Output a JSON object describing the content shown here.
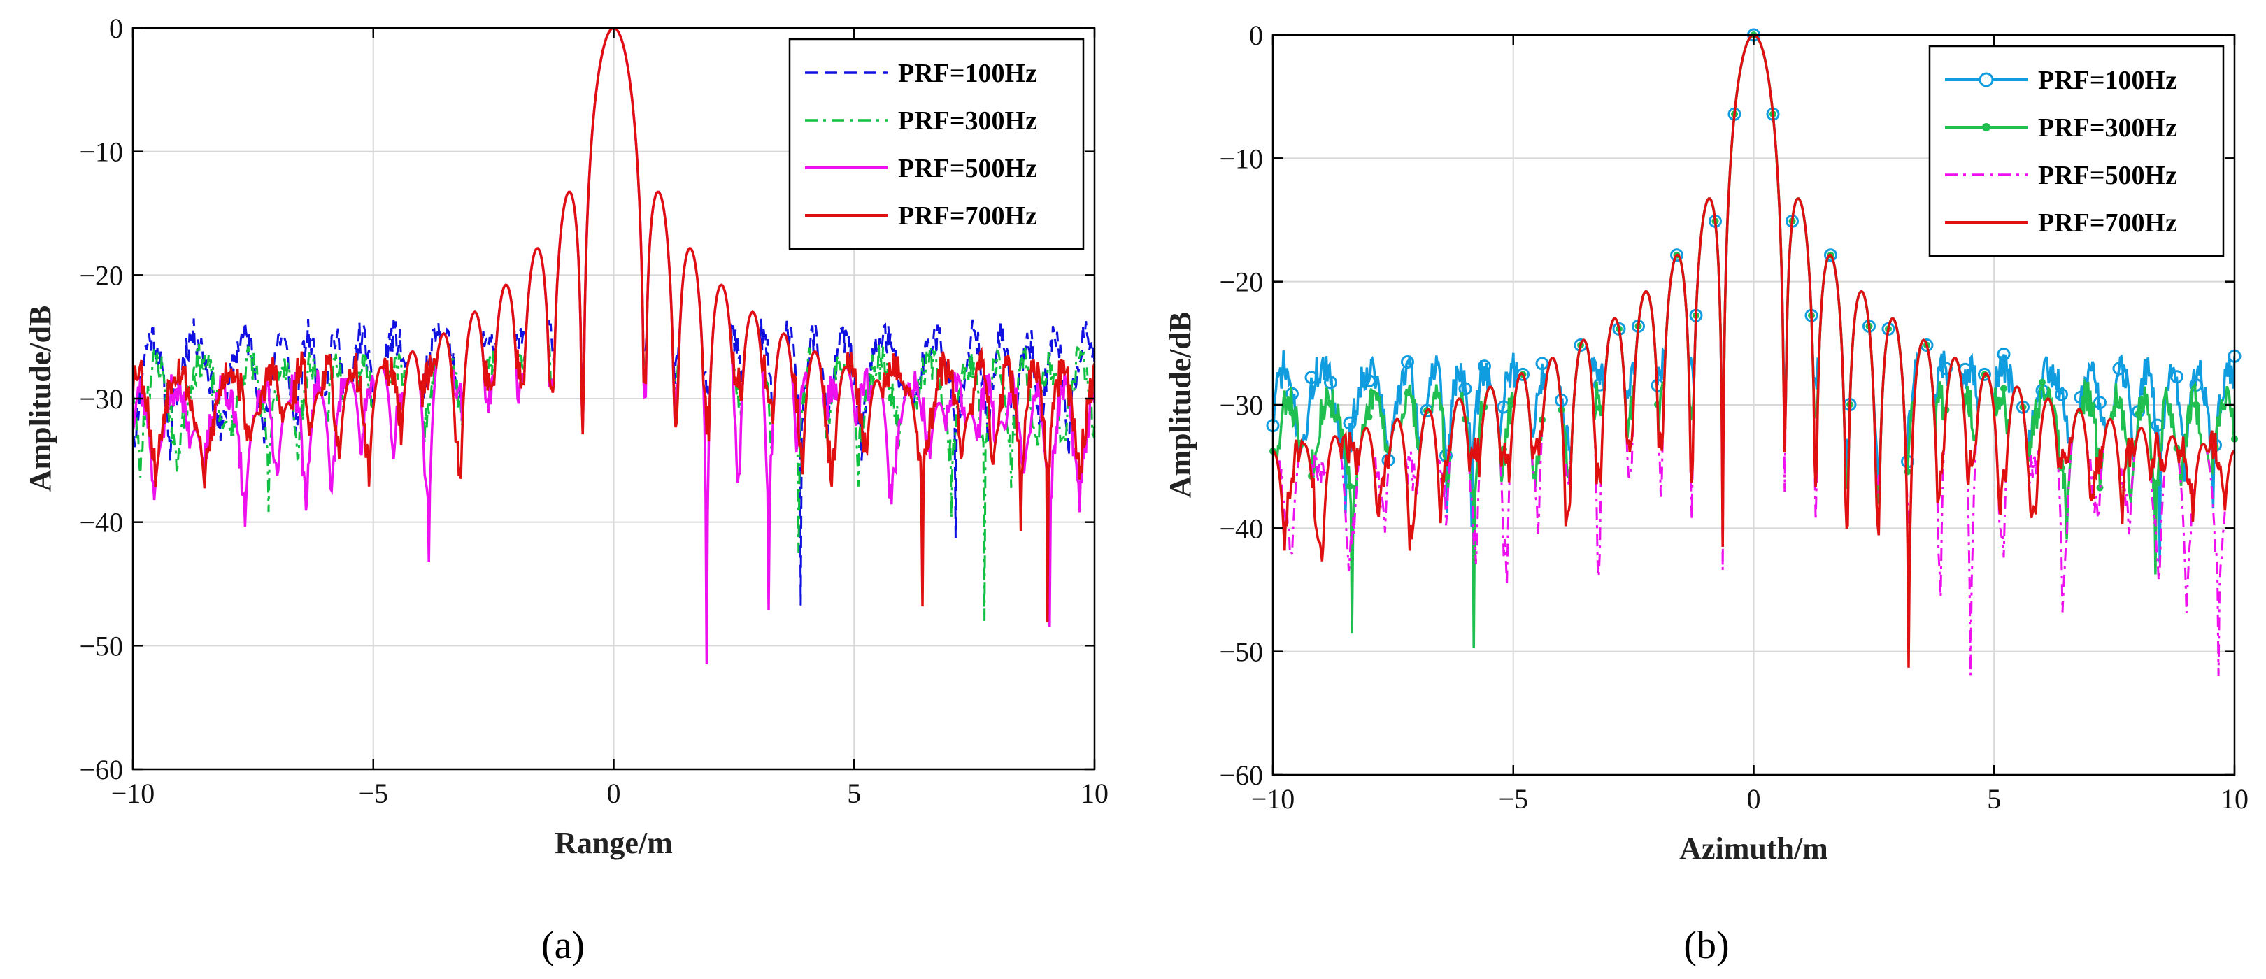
{
  "figure": {
    "panel_labels": [
      "(a)",
      "(b)"
    ]
  },
  "chart_data": [
    {
      "type": "line",
      "panel": "(a)",
      "xlabel": "Range/m",
      "ylabel": "Amplitude/dB",
      "xlim": [
        -10,
        10
      ],
      "ylim": [
        -60,
        0
      ],
      "xticks": [
        -10,
        -5,
        0,
        5,
        10
      ],
      "yticks": [
        0,
        -10,
        -20,
        -30,
        -40,
        -50,
        -60
      ],
      "xtick_labels": [
        "−10",
        "−5",
        "0",
        "5",
        "10"
      ],
      "ytick_labels": [
        "0",
        "−10",
        "−20",
        "−30",
        "−40",
        "−50",
        "−60"
      ],
      "grid": true,
      "legend_position": "top-right",
      "series": [
        {
          "name": "PRF=100Hz",
          "color": "#1010e0",
          "style": "dashed",
          "seed": 11,
          "floor": -29,
          "spread": 8
        },
        {
          "name": "PRF=300Hz",
          "color": "#10c040",
          "style": "dashdot",
          "seed": 23,
          "floor": -31,
          "spread": 8
        },
        {
          "name": "PRF=500Hz",
          "color": "#ee10ee",
          "style": "solid",
          "seed": 37,
          "floor": -34,
          "spread": 10
        },
        {
          "name": "PRF=700Hz",
          "color": "#e01010",
          "style": "solid",
          "seed": 53,
          "floor": -32,
          "spread": 9
        }
      ]
    },
    {
      "type": "line",
      "panel": "(b)",
      "xlabel": "Azimuth/m",
      "ylabel": "Amplitude/dB",
      "xlim": [
        -10,
        10
      ],
      "ylim": [
        -60,
        0
      ],
      "xticks": [
        -10,
        -5,
        0,
        5,
        10
      ],
      "yticks": [
        0,
        -10,
        -20,
        -30,
        -40,
        -50,
        -60
      ],
      "xtick_labels": [
        "−10",
        "−5",
        "0",
        "5",
        "10"
      ],
      "ytick_labels": [
        "0",
        "−10",
        "−20",
        "−30",
        "−40",
        "−50",
        "−60"
      ],
      "grid": true,
      "legend_position": "top-right",
      "series": [
        {
          "name": "PRF=100Hz",
          "color": "#109de0",
          "style": "solid",
          "marker": "circle",
          "seed": 71,
          "floor": -31,
          "spread": 8
        },
        {
          "name": "PRF=300Hz",
          "color": "#20c050",
          "style": "solid",
          "marker": "star",
          "seed": 83,
          "floor": -34,
          "spread": 9
        },
        {
          "name": "PRF=500Hz",
          "color": "#ee10ee",
          "style": "dashdot",
          "seed": 97,
          "floor": -40,
          "spread": 10
        },
        {
          "name": "PRF=700Hz",
          "color": "#e01010",
          "style": "solid",
          "seed": 101,
          "floor": -38,
          "spread": 9
        }
      ]
    }
  ]
}
